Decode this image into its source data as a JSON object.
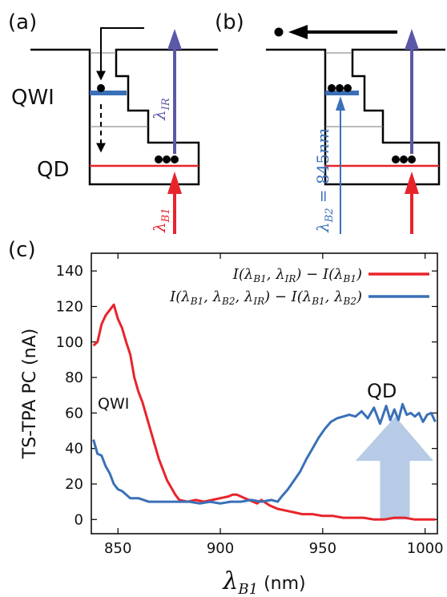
{
  "panels": {
    "a": {
      "label": "(a)",
      "qwi_label": "QWI",
      "qd_label": "QD",
      "ir_label": "λIR",
      "b1_label": "λB1"
    },
    "b": {
      "label": "(b)",
      "b2_label": "λB2 = 845nm",
      "ir_label": "λIR"
    },
    "c": {
      "label": "(c)"
    }
  },
  "colors": {
    "red": "#e8242b",
    "blue": "#3a70b8",
    "purple": "#5b58a8",
    "lightblue": "#b7cbe6",
    "black": "#000000"
  },
  "chart_data": {
    "type": "line",
    "xlabel": "λB1 (nm)",
    "ylabel": "TS-TPA PC (nA)",
    "xlim": [
      837,
      1006
    ],
    "ylim": [
      -8,
      150
    ],
    "xticks": [
      850,
      900,
      950,
      1000
    ],
    "yticks": [
      0,
      20,
      40,
      60,
      80,
      100,
      120,
      140
    ],
    "legend_position": "top-right",
    "annotations": [
      "QWI",
      "QD"
    ],
    "series": [
      {
        "name": "I(λB1, λIR) − I(λB1)",
        "color": "#e8242b",
        "x": [
          838,
          840,
          842,
          844,
          846,
          848,
          850,
          852,
          854,
          856,
          858,
          860,
          862,
          864,
          866,
          868,
          870,
          872,
          874,
          876,
          878,
          880,
          884,
          888,
          892,
          896,
          900,
          904,
          906,
          908,
          910,
          912,
          914,
          916,
          918,
          920,
          924,
          928,
          932,
          936,
          940,
          945,
          950,
          955,
          960,
          965,
          970,
          975,
          980,
          985,
          990,
          995,
          1000,
          1005
        ],
        "y": [
          98,
          100,
          110,
          115,
          118,
          121,
          113,
          108,
          100,
          93,
          80,
          72,
          66,
          58,
          50,
          42,
          34,
          28,
          22,
          18,
          14,
          11,
          10,
          11,
          10,
          11,
          12,
          13,
          14,
          14,
          13,
          12,
          11,
          10,
          9,
          11,
          8,
          6,
          5,
          4,
          3,
          3,
          2,
          2,
          1,
          1,
          1,
          0,
          0,
          1,
          1,
          0,
          0,
          0
        ]
      },
      {
        "name": "I(λB1, λB2, λIR) − I(λB1, λB2)",
        "color": "#3a70b8",
        "x": [
          838,
          840,
          842,
          844,
          846,
          848,
          850,
          852,
          854,
          856,
          858,
          860,
          865,
          870,
          875,
          880,
          885,
          890,
          895,
          900,
          905,
          910,
          915,
          920,
          925,
          928,
          930,
          933,
          936,
          939,
          942,
          945,
          948,
          951,
          954,
          957,
          960,
          963,
          966,
          969,
          972,
          975,
          978,
          981,
          983,
          985,
          987,
          989,
          991,
          993,
          995,
          997,
          999,
          1001,
          1003,
          1005
        ],
        "y": [
          45,
          37,
          36,
          30,
          26,
          20,
          17,
          16,
          14,
          12,
          12,
          12,
          10,
          10,
          10,
          10,
          10,
          9,
          10,
          9,
          10,
          10,
          11,
          10,
          11,
          10,
          13,
          17,
          22,
          27,
          34,
          40,
          46,
          51,
          55,
          57,
          58,
          59,
          58,
          61,
          57,
          63,
          54,
          64,
          56,
          62,
          56,
          65,
          59,
          60,
          58,
          60,
          55,
          59,
          60,
          55
        ]
      }
    ]
  }
}
